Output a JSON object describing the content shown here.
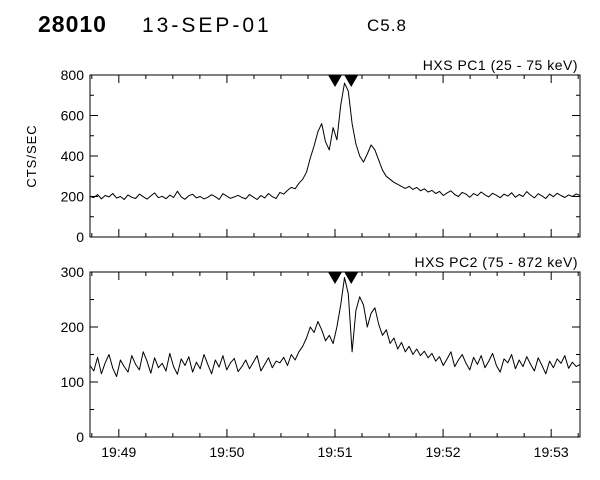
{
  "header": {
    "observation_id": "28010",
    "date": "13-SEP-01",
    "goes_class": "C5.8"
  },
  "colors": {
    "foreground": "#000000",
    "background": "#ffffff"
  },
  "chart_data": [
    {
      "type": "line",
      "title": "HXS PC1 (25 - 75 keV)",
      "ylabel": "CTS/SEC",
      "ylim": [
        0,
        800
      ],
      "yticks": [
        0,
        200,
        400,
        600,
        800
      ],
      "x_start": "19:48:44",
      "x_end": "19:53:16",
      "x_total_seconds": 272,
      "x_ticks": [
        "19:49",
        "19:50",
        "19:51",
        "19:52",
        "19:53"
      ],
      "x_tick_seconds": [
        16,
        76,
        136,
        196,
        256
      ],
      "marker_seconds": [
        136,
        145
      ],
      "grid": false,
      "legend": "none",
      "values": [
        200,
        195,
        210,
        188,
        205,
        198,
        215,
        192,
        200,
        185,
        208,
        196,
        190,
        212,
        199,
        187,
        203,
        218,
        194,
        201,
        189,
        207,
        195,
        226,
        198,
        186,
        204,
        211,
        193,
        200,
        188,
        196,
        209,
        199,
        185,
        214,
        202,
        191,
        198,
        206,
        195,
        188,
        210,
        197,
        185,
        205,
        193,
        215,
        199,
        190,
        220,
        212,
        230,
        245,
        238,
        265,
        285,
        320,
        390,
        450,
        520,
        560,
        470,
        430,
        540,
        480,
        650,
        760,
        720,
        560,
        460,
        400,
        370,
        410,
        455,
        430,
        380,
        330,
        300,
        285,
        270,
        260,
        250,
        240,
        250,
        235,
        245,
        228,
        238,
        222,
        230,
        215,
        225,
        205,
        218,
        228,
        210,
        200,
        220,
        212,
        196,
        215,
        204,
        222,
        208,
        198,
        216,
        206,
        194,
        212,
        202,
        219,
        196,
        210,
        200,
        224,
        207,
        193,
        214,
        203,
        190,
        212,
        199,
        216,
        205,
        195,
        208,
        200,
        213,
        205
      ]
    },
    {
      "type": "line",
      "title": "HXS PC2 (75 - 872 keV)",
      "ylim": [
        0,
        300
      ],
      "yticks": [
        0,
        100,
        200,
        300
      ],
      "x_start": "19:48:44",
      "x_end": "19:53:16",
      "x_total_seconds": 272,
      "x_ticks": [
        "19:49",
        "19:50",
        "19:51",
        "19:52",
        "19:53"
      ],
      "x_tick_seconds": [
        16,
        76,
        136,
        196,
        256
      ],
      "marker_seconds": [
        136,
        145
      ],
      "grid": false,
      "legend": "none",
      "values": [
        130,
        120,
        145,
        115,
        135,
        150,
        125,
        110,
        140,
        128,
        118,
        148,
        132,
        122,
        155,
        138,
        116,
        144,
        126,
        134,
        120,
        152,
        128,
        114,
        142,
        130,
        146,
        118,
        136,
        124,
        150,
        132,
        115,
        140,
        127,
        148,
        122,
        135,
        143,
        119,
        128,
        140,
        124,
        136,
        148,
        120,
        132,
        144,
        126,
        138,
        135,
        145,
        130,
        150,
        140,
        155,
        165,
        180,
        200,
        190,
        210,
        195,
        175,
        185,
        170,
        200,
        240,
        290,
        260,
        155,
        230,
        255,
        240,
        200,
        225,
        235,
        205,
        185,
        195,
        170,
        180,
        160,
        172,
        155,
        165,
        150,
        160,
        148,
        156,
        144,
        152,
        138,
        146,
        130,
        142,
        155,
        128,
        140,
        150,
        134,
        122,
        145,
        132,
        148,
        126,
        138,
        152,
        130,
        118,
        142,
        135,
        150,
        124,
        140,
        128,
        146,
        132,
        120,
        144,
        130,
        115,
        138,
        126,
        142,
        134,
        148,
        125,
        136,
        128,
        132
      ]
    }
  ]
}
